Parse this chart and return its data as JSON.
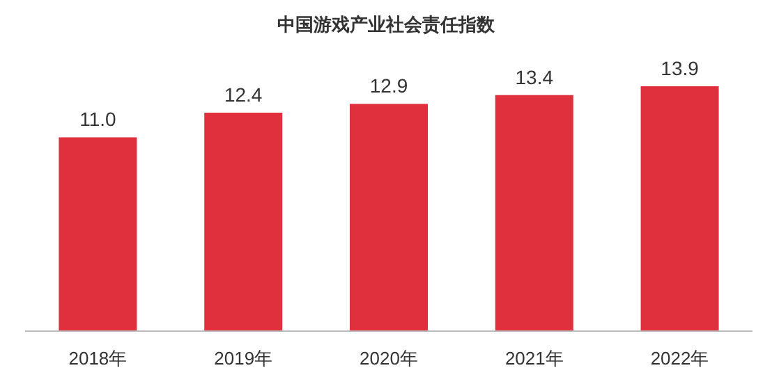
{
  "chart_data": {
    "type": "bar",
    "title": "中国游戏产业社会责任指数",
    "categories": [
      "2018年",
      "2019年",
      "2020年",
      "2021年",
      "2022年"
    ],
    "values": [
      11.0,
      12.4,
      12.9,
      13.4,
      13.9
    ],
    "value_labels": [
      "11.0",
      "12.4",
      "12.9",
      "13.4",
      "13.9"
    ],
    "color": "#e1303d"
  }
}
